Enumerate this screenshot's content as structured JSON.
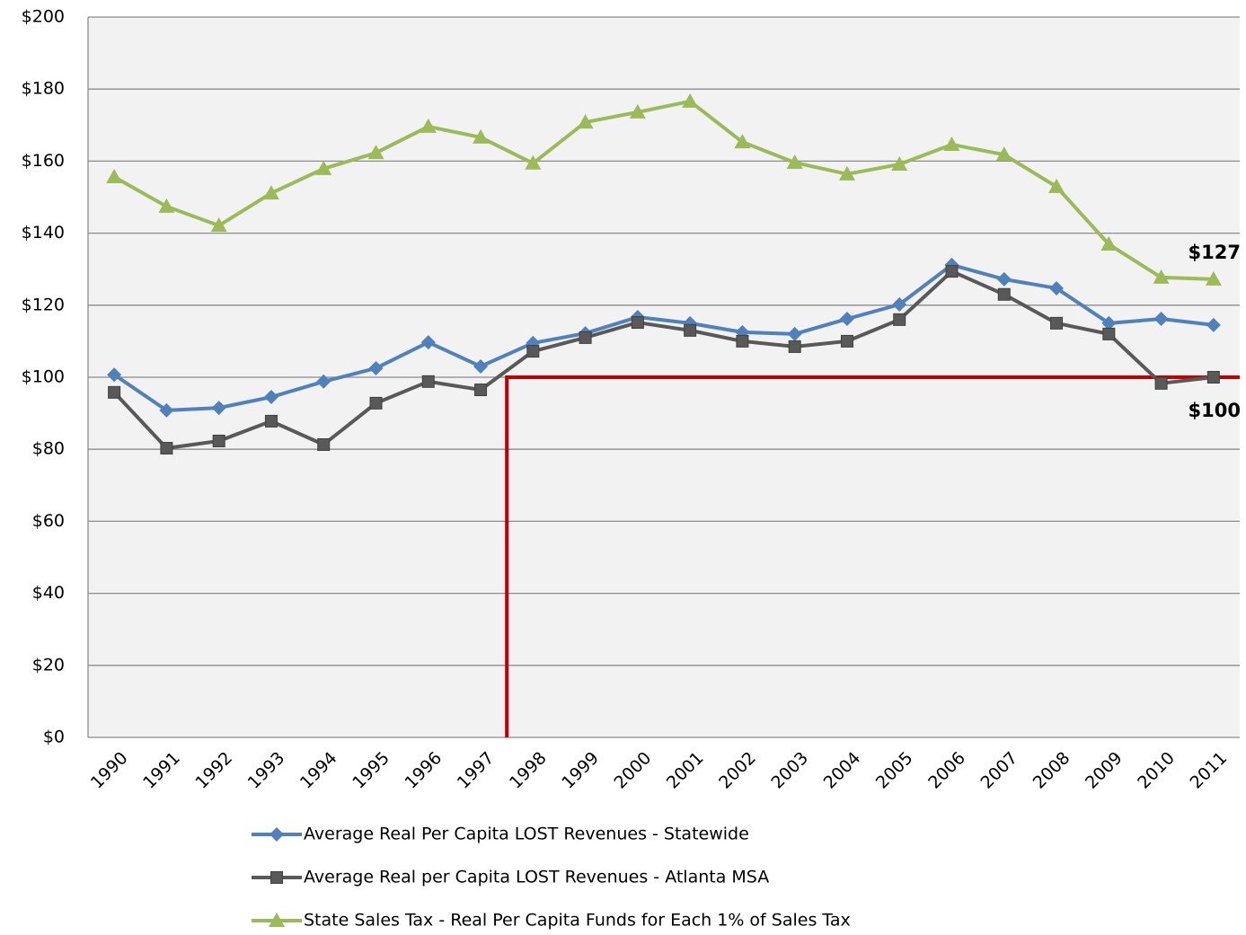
{
  "chart_data": {
    "type": "line",
    "categories": [
      "1990",
      "1991",
      "1992",
      "1993",
      "1994",
      "1995",
      "1996",
      "1997",
      "1998",
      "1999",
      "2000",
      "2001",
      "2002",
      "2003",
      "2004",
      "2005",
      "2006",
      "2007",
      "2008",
      "2009",
      "2010",
      "2011"
    ],
    "series": [
      {
        "name": "Average Real Per Capita LOST Revenues - Statewide",
        "color": "#4f81bd",
        "marker": "diamond",
        "values": [
          100.7,
          90.8,
          91.5,
          94.5,
          98.8,
          102.5,
          109.7,
          103,
          109.5,
          112.2,
          116.7,
          115,
          112.5,
          112,
          116.2,
          120.2,
          131.2,
          127.2,
          124.7,
          115,
          116.2,
          114.5
        ]
      },
      {
        "name": "Average Real per Capita LOST Revenues - Atlanta MSA",
        "color": "#595959",
        "marker": "square",
        "values": [
          95.8,
          80.3,
          82.3,
          87.8,
          81.3,
          92.8,
          98.8,
          96.5,
          107.2,
          111,
          115.2,
          113,
          110,
          108.5,
          110,
          116,
          129.4,
          123,
          115,
          112,
          98.3,
          100
        ]
      },
      {
        "name": "State Sales Tax - Real Per Capita Funds for Each 1% of Sales Tax",
        "color": "#9bbb59",
        "marker": "triangle",
        "values": [
          155.6,
          147.4,
          142.1,
          151.1,
          157.9,
          162.3,
          169.6,
          166.6,
          159.4,
          170.8,
          173.6,
          176.6,
          165.3,
          159.6,
          156.4,
          159.1,
          164.6,
          161.8,
          152.9,
          136.9,
          127.7,
          127.2
        ]
      }
    ],
    "ylim": [
      0,
      200
    ],
    "yticks": [
      {
        "value": 0,
        "label": "$0"
      },
      {
        "value": 20,
        "label": "$20"
      },
      {
        "value": 40,
        "label": "$40"
      },
      {
        "value": 60,
        "label": "$60"
      },
      {
        "value": 80,
        "label": "$80"
      },
      {
        "value": 100,
        "label": "$100"
      },
      {
        "value": 120,
        "label": "$120"
      },
      {
        "value": 140,
        "label": "$140"
      },
      {
        "value": 160,
        "label": "$160"
      },
      {
        "value": 180,
        "label": "$180"
      },
      {
        "value": 200,
        "label": "$200"
      }
    ],
    "grid": true,
    "legend": "bottom",
    "reference_line": {
      "value": 100,
      "start": "1998",
      "color": "#c00000"
    },
    "annotations": [
      {
        "text": "$127",
        "series": 2
      },
      {
        "text": "$100",
        "series": 1
      }
    ]
  }
}
